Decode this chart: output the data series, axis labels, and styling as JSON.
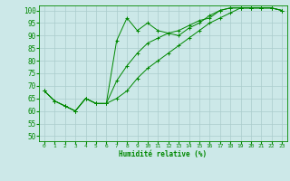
{
  "xlabel": "Humidité relative (%)",
  "xlim": [
    -0.5,
    23.5
  ],
  "ylim": [
    48,
    102
  ],
  "yticks": [
    50,
    55,
    60,
    65,
    70,
    75,
    80,
    85,
    90,
    95,
    100
  ],
  "xticks": [
    0,
    1,
    2,
    3,
    4,
    5,
    6,
    7,
    8,
    9,
    10,
    11,
    12,
    13,
    14,
    15,
    16,
    17,
    18,
    19,
    20,
    21,
    22,
    23
  ],
  "bg_color": "#cce8e8",
  "grid_color": "#aacccc",
  "line_color": "#008800",
  "series": [
    [
      68,
      64,
      62,
      60,
      65,
      63,
      63,
      88,
      97,
      92,
      95,
      92,
      91,
      90,
      93,
      95,
      98,
      100,
      101,
      101,
      101,
      101,
      101,
      100
    ],
    [
      68,
      64,
      62,
      60,
      65,
      63,
      63,
      72,
      78,
      83,
      87,
      89,
      91,
      92,
      94,
      96,
      97,
      100,
      101,
      101,
      101,
      101,
      101,
      100
    ],
    [
      68,
      64,
      62,
      60,
      65,
      63,
      63,
      65,
      68,
      73,
      77,
      80,
      83,
      86,
      89,
      92,
      95,
      97,
      99,
      101,
      101,
      101,
      101,
      100
    ]
  ]
}
